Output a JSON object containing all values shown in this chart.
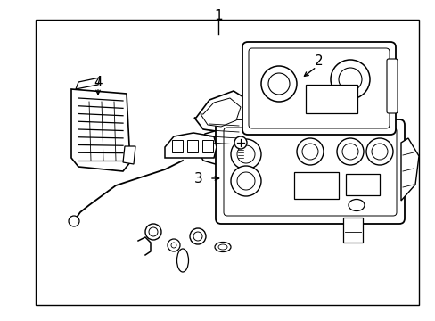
{
  "background_color": "#ffffff",
  "line_color": "#000000",
  "border_color": "#000000",
  "label_1": "1",
  "label_2": "2",
  "label_3": "3",
  "label_4": "4",
  "label_font_size": 11,
  "fig_width": 4.89,
  "fig_height": 3.6,
  "dpi": 100,
  "lw": 1.0,
  "lw_part": 1.2
}
